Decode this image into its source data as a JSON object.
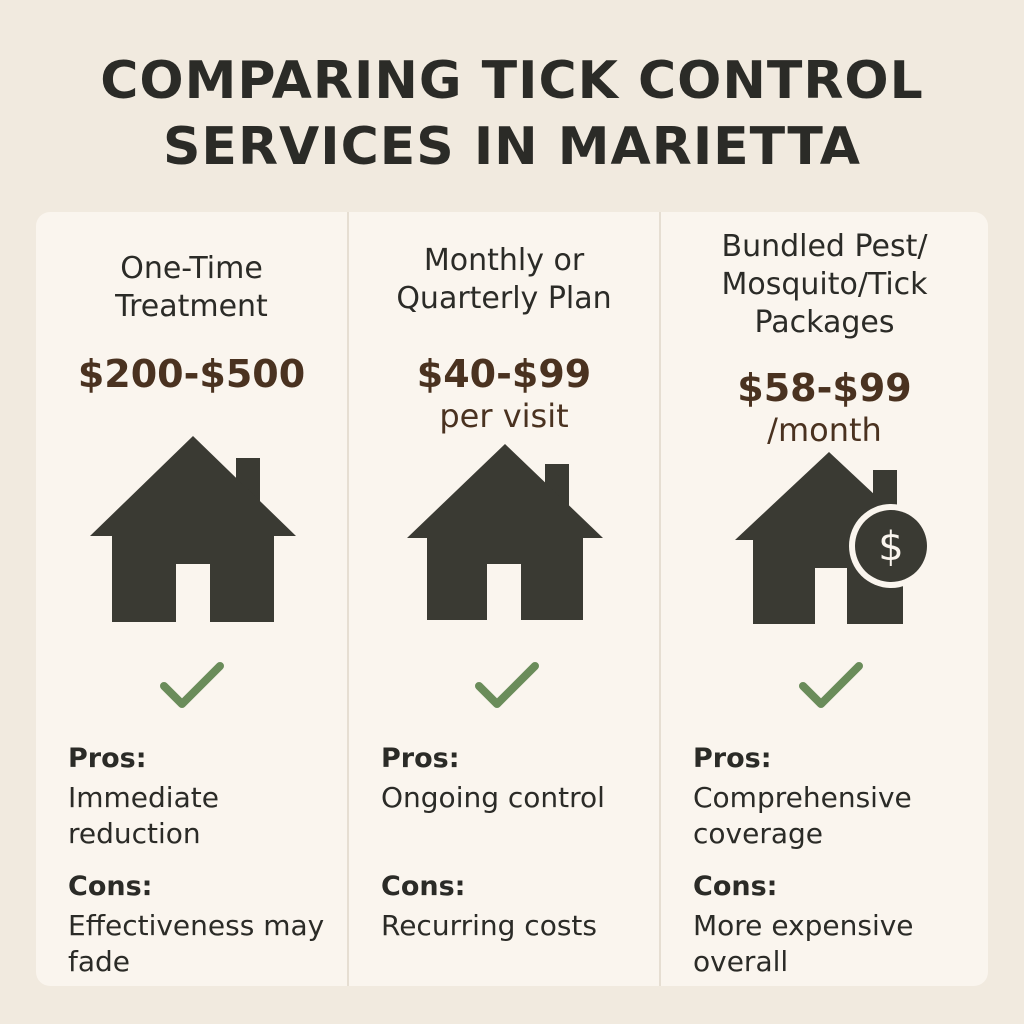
{
  "title": {
    "line1": "COMPARING TICK CONTROL",
    "line2": "SERVICES IN MARIETTA"
  },
  "plans": [
    {
      "name": "One-Time\nTreatment",
      "price": "$200-$500",
      "unit": "",
      "icon": "house-icon",
      "check_icon": "checkmark-icon",
      "pros_label": "Pros:",
      "pros": "Immediate reduction",
      "cons_label": "Cons:",
      "cons": "Effectiveness may fade"
    },
    {
      "name": "Monthly or\nQuarterly Plan",
      "price": "$40-$99",
      "unit": "per visit",
      "icon": "house-icon",
      "check_icon": "checkmark-icon",
      "pros_label": "Pros:",
      "pros": "Ongoing control",
      "cons_label": "Cons:",
      "cons": "Recurring costs"
    },
    {
      "name": "Bundled Pest/\nMosquito/Tick\nPackages",
      "price": "$58-$99",
      "unit": "/month",
      "icon": "house-dollar-icon",
      "check_icon": "checkmark-icon",
      "pros_label": "Pros:",
      "pros": "Comprehensive coverage",
      "cons_label": "Cons:",
      "cons": "More expensive overall"
    }
  ],
  "colors": {
    "background": "#f1eadf",
    "card": "#faf5ee",
    "text": "#2b2b27",
    "price": "#4a3220",
    "house": "#3a3a33",
    "check": "#6a8c5a"
  }
}
